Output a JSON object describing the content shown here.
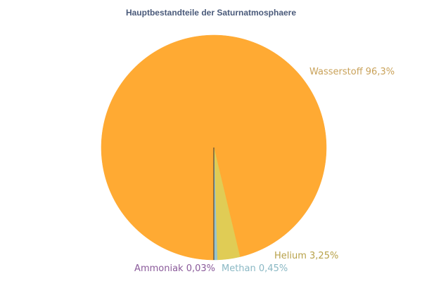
{
  "chart_data": {
    "type": "pie",
    "title": "Hauptbestandteile der Saturnatmosphaere",
    "slices": [
      {
        "name": "Wasserstoff",
        "value": 96.3,
        "label": "Wasserstoff 96,3%",
        "color": "#ffaa33",
        "label_color": "#c9a25a"
      },
      {
        "name": "Helium",
        "value": 3.25,
        "label": "Helium 3,25%",
        "color": "#e0cc55",
        "label_color": "#b8a24a"
      },
      {
        "name": "Methan",
        "value": 0.45,
        "label": "Methan 0,45%",
        "color": "#99c4cc",
        "label_color": "#8ab8c4"
      },
      {
        "name": "Ammoniak",
        "value": 0.03,
        "label": "Ammoniak 0,03%",
        "color": "#8a5a9a",
        "label_color": "#8a5a9a"
      }
    ]
  }
}
